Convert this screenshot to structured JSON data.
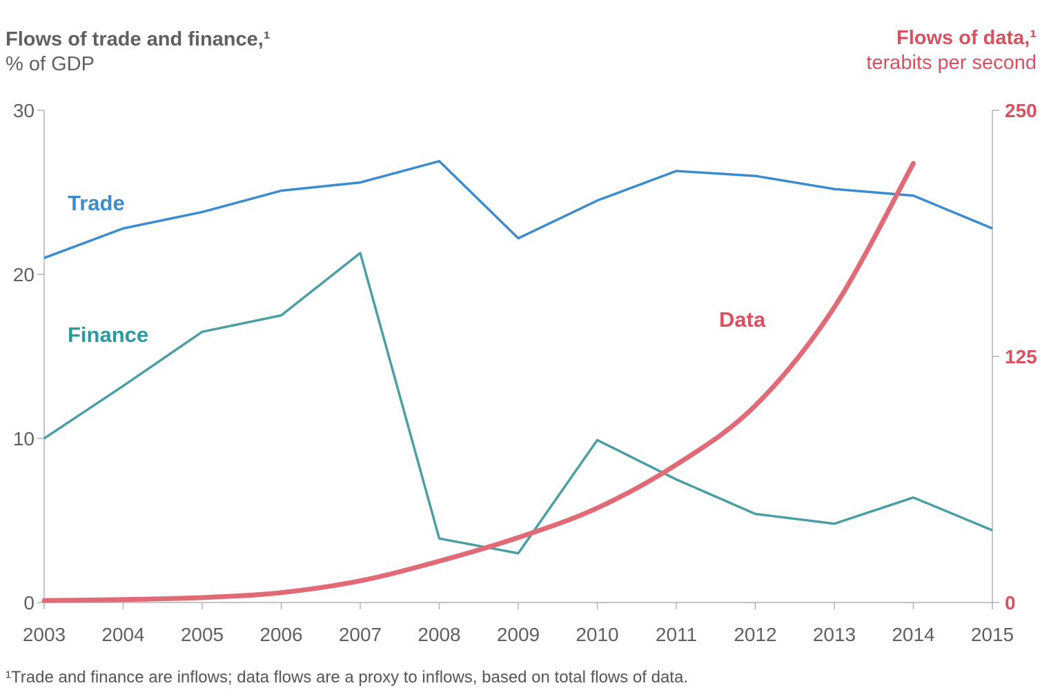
{
  "left_axis": {
    "title": "Flows of trade and finance,¹",
    "subtitle": "% of GDP"
  },
  "right_axis": {
    "title": "Flows of data,¹",
    "subtitle": "terabits per second"
  },
  "footnote": "¹Trade and finance are inflows; data flows are a proxy to inflows, based on total flows of data.",
  "chart_data": {
    "type": "line",
    "x": [
      2003,
      2004,
      2005,
      2006,
      2007,
      2008,
      2009,
      2010,
      2011,
      2012,
      2013,
      2014,
      2015
    ],
    "x_tick_labels": [
      "2003",
      "2004",
      "2005",
      "2006",
      "2007",
      "2008",
      "2009",
      "2010",
      "2011",
      "2012",
      "2013",
      "2014",
      "2015"
    ],
    "y_left": {
      "lim": [
        0,
        30
      ],
      "ticks": [
        0,
        10,
        20,
        30
      ],
      "tick_labels": [
        "0",
        "10",
        "20",
        "30"
      ]
    },
    "y_right": {
      "lim": [
        0,
        250
      ],
      "ticks": [
        0,
        125,
        250
      ],
      "tick_labels": [
        "0",
        "125",
        "250"
      ]
    },
    "grid": false,
    "series": [
      {
        "name": "Trade",
        "axis": "left",
        "color": "#3a8ccf",
        "x": [
          2003,
          2004,
          2005,
          2006,
          2007,
          2008,
          2009,
          2010,
          2011,
          2012,
          2013,
          2014,
          2015
        ],
        "values": [
          21.0,
          22.8,
          23.8,
          25.1,
          25.6,
          26.9,
          22.2,
          24.5,
          26.3,
          26.0,
          25.2,
          24.8,
          22.8
        ]
      },
      {
        "name": "Finance",
        "axis": "left",
        "color": "#4a9ea4",
        "x": [
          2003,
          2004,
          2005,
          2006,
          2007,
          2008,
          2009,
          2010,
          2011,
          2012,
          2013,
          2014,
          2015
        ],
        "values": [
          10.0,
          13.2,
          16.5,
          17.5,
          21.3,
          3.9,
          3.0,
          9.9,
          7.5,
          5.4,
          4.8,
          6.4,
          4.4
        ]
      },
      {
        "name": "Data",
        "axis": "right",
        "color": "#e06b77",
        "x": [
          2003,
          2004,
          2005,
          2006,
          2007,
          2008,
          2009,
          2010,
          2011,
          2012,
          2013,
          2014
        ],
        "values": [
          1,
          1.5,
          2.5,
          5,
          11,
          21,
          33,
          48,
          70,
          100,
          150,
          223
        ]
      }
    ],
    "series_labels": [
      {
        "series": "Trade",
        "text": "Trade",
        "color": "#3a8ccf"
      },
      {
        "series": "Finance",
        "text": "Finance",
        "color": "#2b9aa0"
      },
      {
        "series": "Data",
        "text": "Data",
        "color": "#d9505f"
      }
    ]
  },
  "colors": {
    "axis": "#b0b0b0",
    "left_text": "#606060",
    "right_text": "#d9505f",
    "footnote": "#555555"
  }
}
